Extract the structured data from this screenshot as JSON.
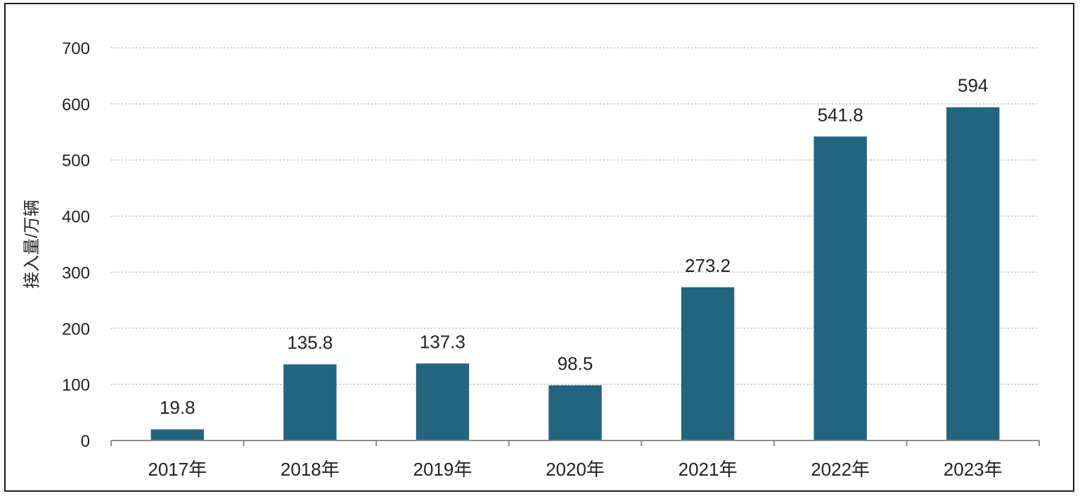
{
  "chart_data": {
    "type": "bar",
    "categories": [
      "2017年",
      "2018年",
      "2019年",
      "2020年",
      "2021年",
      "2022年",
      "2023年"
    ],
    "values": [
      19.8,
      135.8,
      137.3,
      98.5,
      273.2,
      541.8,
      594
    ],
    "value_labels": [
      "19.8",
      "135.8",
      "137.3",
      "98.5",
      "273.2",
      "541.8",
      "594"
    ],
    "title": "",
    "xlabel": "",
    "ylabel": "接入量/万辆",
    "ylim": [
      0,
      700
    ],
    "yticks": [
      0,
      100,
      200,
      300,
      400,
      500,
      600,
      700
    ],
    "grid": true,
    "legend": "none",
    "bar_color": "#236580",
    "grid_color": "#bfbfbf",
    "axis_color": "#8c8c8c"
  }
}
